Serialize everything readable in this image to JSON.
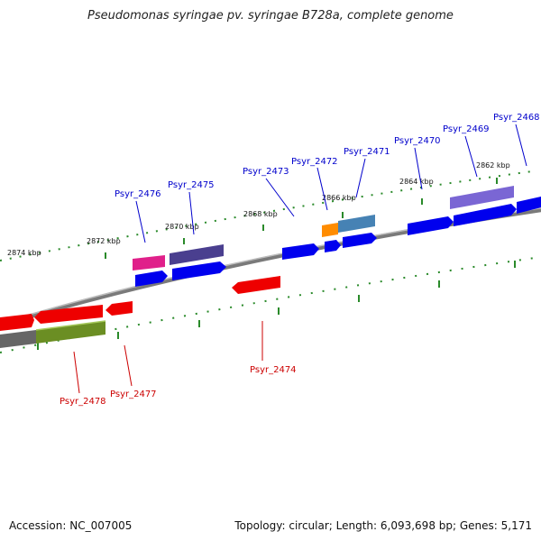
{
  "title": "Pseudomonas syringae pv. syringae B728a, complete genome",
  "footer": {
    "accession": "Accession: NC_007005",
    "summary": "Topology: circular; Length: 6,093,698 bp; Genes: 5,171"
  },
  "scale_ticks": [
    {
      "label": "2874 kbp"
    },
    {
      "label": "2872 kbp"
    },
    {
      "label": "2870 kbp"
    },
    {
      "label": "2868 kbp"
    },
    {
      "label": "2866 kbp"
    },
    {
      "label": "2864 kbp"
    },
    {
      "label": "2862 kbp"
    }
  ],
  "gene_labels": [
    {
      "id": "Psyr_2468",
      "color": "#0000cc"
    },
    {
      "id": "Psyr_2469",
      "color": "#0000cc"
    },
    {
      "id": "Psyr_2470",
      "color": "#0000cc"
    },
    {
      "id": "Psyr_2471",
      "color": "#0000cc"
    },
    {
      "id": "Psyr_2472",
      "color": "#0000cc"
    },
    {
      "id": "Psyr_2473",
      "color": "#0000cc"
    },
    {
      "id": "Psyr_2475",
      "color": "#0000cc"
    },
    {
      "id": "Psyr_2476",
      "color": "#0000cc"
    },
    {
      "id": "Psyr_2474",
      "color": "#cc0000"
    },
    {
      "id": "Psyr_2477",
      "color": "#cc0000"
    },
    {
      "id": "Psyr_2478",
      "color": "#cc0000"
    }
  ],
  "colors": {
    "forward_gene": "#0000ee",
    "reverse_gene": "#ee0000",
    "scale_ticks": "#2a8a2a",
    "backbone": "#808080",
    "feature_magenta": "#e0208a",
    "feature_purple_dark": "#4a3f8f",
    "feature_purple_light": "#7a66d4",
    "feature_orange": "#ff8c00",
    "feature_steelblue": "#4682b4",
    "feature_olive": "#6b8e23",
    "feature_gray": "#666666"
  }
}
